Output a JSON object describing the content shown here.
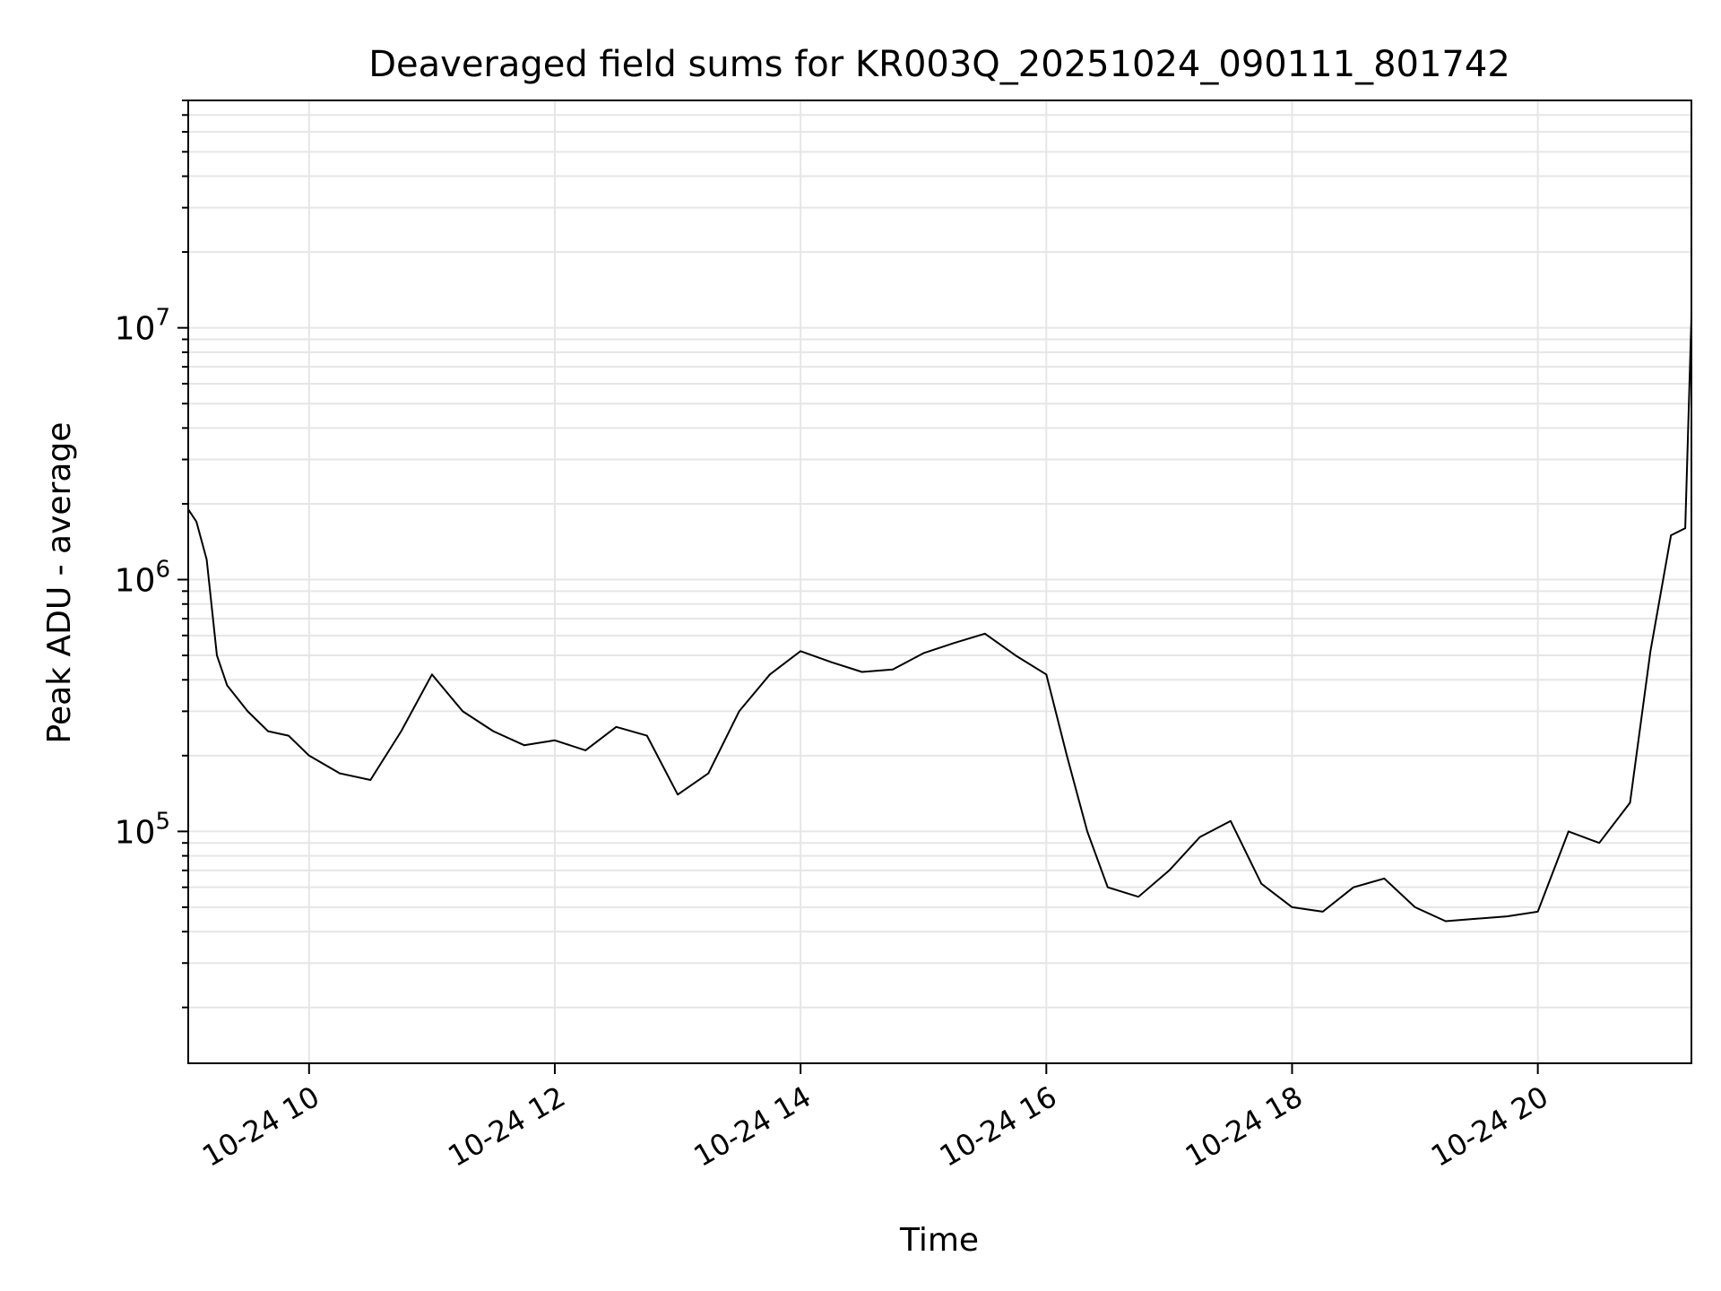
{
  "chart_data": {
    "type": "line",
    "title": "Deaveraged field sums for KR003Q_20251024_090111_801742",
    "xlabel": "Time",
    "ylabel": "Peak ADU - average",
    "yscale": "log",
    "ylim": [
      12000,
      80000000
    ],
    "xlim": [
      "2025-10-24 09:01",
      "2025-10-24 21:15"
    ],
    "x_ticks": [
      {
        "x": "2025-10-24 10:00",
        "label": "10-24 10"
      },
      {
        "x": "2025-10-24 12:00",
        "label": "10-24 12"
      },
      {
        "x": "2025-10-24 14:00",
        "label": "10-24 14"
      },
      {
        "x": "2025-10-24 16:00",
        "label": "10-24 16"
      },
      {
        "x": "2025-10-24 18:00",
        "label": "10-24 18"
      },
      {
        "x": "2025-10-24 20:00",
        "label": "10-24 20"
      }
    ],
    "y_ticks": [
      {
        "value": 100000,
        "base": "10",
        "exp": "5"
      },
      {
        "value": 1000000,
        "base": "10",
        "exp": "6"
      },
      {
        "value": 10000000,
        "base": "10",
        "exp": "7"
      }
    ],
    "grid": true,
    "line_color": "#000000",
    "series": [
      {
        "x": [
          "2025-10-24 09:01",
          "2025-10-24 09:05",
          "2025-10-24 09:10",
          "2025-10-24 09:15",
          "2025-10-24 09:20",
          "2025-10-24 09:30",
          "2025-10-24 09:40",
          "2025-10-24 09:50",
          "2025-10-24 10:00",
          "2025-10-24 10:15",
          "2025-10-24 10:30",
          "2025-10-24 10:45",
          "2025-10-24 11:00",
          "2025-10-24 11:15",
          "2025-10-24 11:30",
          "2025-10-24 11:45",
          "2025-10-24 12:00",
          "2025-10-24 12:15",
          "2025-10-24 12:30",
          "2025-10-24 12:45",
          "2025-10-24 13:00",
          "2025-10-24 13:15",
          "2025-10-24 13:30",
          "2025-10-24 13:45",
          "2025-10-24 14:00",
          "2025-10-24 14:15",
          "2025-10-24 14:30",
          "2025-10-24 14:45",
          "2025-10-24 15:00",
          "2025-10-24 15:15",
          "2025-10-24 15:30",
          "2025-10-24 15:45",
          "2025-10-24 16:00",
          "2025-10-24 16:10",
          "2025-10-24 16:20",
          "2025-10-24 16:30",
          "2025-10-24 16:45",
          "2025-10-24 17:00",
          "2025-10-24 17:15",
          "2025-10-24 17:30",
          "2025-10-24 17:45",
          "2025-10-24 18:00",
          "2025-10-24 18:15",
          "2025-10-24 18:30",
          "2025-10-24 18:45",
          "2025-10-24 19:00",
          "2025-10-24 19:15",
          "2025-10-24 19:30",
          "2025-10-24 19:45",
          "2025-10-24 20:00",
          "2025-10-24 20:15",
          "2025-10-24 20:30",
          "2025-10-24 20:45",
          "2025-10-24 20:55",
          "2025-10-24 21:05",
          "2025-10-24 21:12",
          "2025-10-24 21:15"
        ],
        "y": [
          1900000,
          1700000,
          1200000,
          500000,
          380000,
          300000,
          250000,
          240000,
          200000,
          170000,
          160000,
          250000,
          420000,
          300000,
          250000,
          220000,
          230000,
          210000,
          260000,
          240000,
          140000,
          170000,
          300000,
          420000,
          520000,
          470000,
          430000,
          440000,
          510000,
          560000,
          610000,
          500000,
          420000,
          200000,
          100000,
          60000,
          55000,
          70000,
          95000,
          110000,
          62000,
          50000,
          48000,
          60000,
          65000,
          50000,
          44000,
          45000,
          46000,
          48000,
          100000,
          90000,
          130000,
          520000,
          1500000,
          1600000,
          11000000
        ]
      }
    ]
  }
}
